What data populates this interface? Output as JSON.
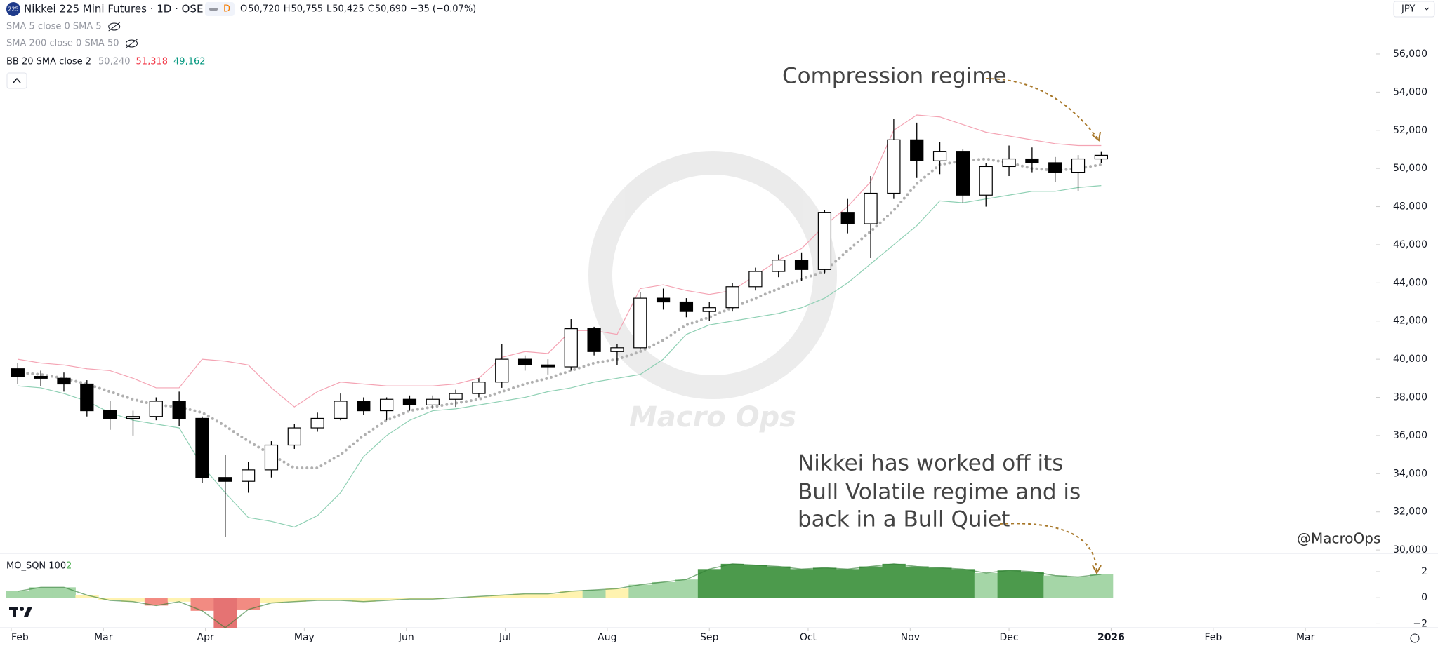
{
  "header": {
    "symbol": "Nikkei 225 Mini Futures · 1D · OSE",
    "badge": "D",
    "logo": "225",
    "ohlc": [
      {
        "key": "O",
        "value": "50,720"
      },
      {
        "key": "H",
        "value": "50,755"
      },
      {
        "key": "L",
        "value": "50,425"
      },
      {
        "key": "C",
        "value": "50,690"
      }
    ],
    "change": "−35 (−0.07%)",
    "indicators": [
      {
        "name": "SMA 5 close 0 SMA 5"
      },
      {
        "name": "SMA 200 close 0 SMA 50"
      },
      {
        "name": "BB 20 SMA close 2",
        "values": [
          "50,240",
          "51,318",
          "49,162"
        ]
      }
    ],
    "currency": "JPY"
  },
  "annotations": {
    "compression": "Compression regime",
    "note": [
      "Nikkei has worked off its",
      "Bull Volatile regime and is",
      "back in a Bull Quiet"
    ],
    "handle": "@MacroOps",
    "watermark": "Macro Ops"
  },
  "chart_data": [
    {
      "type": "candlestick",
      "x": [
        2,
        9,
        16,
        23,
        30,
        37,
        44,
        51,
        58,
        65,
        72,
        79,
        86,
        93,
        100,
        107,
        114,
        121,
        128,
        135,
        142,
        149,
        156,
        163,
        170,
        177,
        184,
        191,
        198,
        205,
        212,
        219,
        226,
        233,
        240,
        247,
        254,
        261,
        268,
        275,
        282,
        289,
        296,
        303,
        310,
        317,
        324,
        331
      ],
      "open": [
        39500,
        39100,
        39000,
        38700,
        37300,
        36900,
        37000,
        37800,
        36900,
        33800,
        33600,
        34200,
        35500,
        36400,
        36900,
        37800,
        37300,
        37900,
        37600,
        37900,
        38200,
        38800,
        40000,
        39700,
        39600,
        41600,
        40400,
        40600,
        43200,
        43000,
        42500,
        42700,
        43800,
        44600,
        45200,
        44700,
        47700,
        47100,
        48700,
        51500,
        50400,
        50900,
        48600,
        50100,
        50500,
        50300,
        49800,
        50500
      ],
      "high": [
        39800,
        39400,
        39300,
        38900,
        37800,
        37300,
        38000,
        38300,
        37000,
        35000,
        34600,
        35700,
        36600,
        37200,
        38200,
        38000,
        38000,
        38100,
        38100,
        38400,
        39000,
        40800,
        40200,
        40000,
        42100,
        41700,
        40800,
        43500,
        43700,
        43200,
        43000,
        44000,
        44800,
        45500,
        45600,
        47800,
        48400,
        49600,
        52600,
        52400,
        51400,
        51000,
        50300,
        51200,
        51100,
        50600,
        50700,
        50900
      ],
      "low": [
        38700,
        38600,
        38300,
        37000,
        36300,
        36000,
        36800,
        36500,
        33500,
        30700,
        33000,
        33800,
        35300,
        36200,
        36800,
        37100,
        36800,
        37300,
        37400,
        37500,
        38000,
        38500,
        39400,
        39200,
        39400,
        40200,
        39700,
        40500,
        42600,
        42200,
        42000,
        42500,
        43600,
        44300,
        44100,
        44500,
        46600,
        45300,
        48400,
        49500,
        49700,
        48200,
        48000,
        49600,
        49800,
        49300,
        48800,
        50300
      ],
      "close": [
        39100,
        39000,
        38700,
        37300,
        36900,
        37000,
        37800,
        36900,
        33800,
        33600,
        34200,
        35500,
        36400,
        36900,
        37800,
        37300,
        37900,
        37600,
        37900,
        38200,
        38800,
        40000,
        39700,
        39600,
        41600,
        40400,
        40600,
        43200,
        43000,
        42500,
        42700,
        43800,
        44600,
        45200,
        44700,
        47700,
        47100,
        48700,
        51500,
        50400,
        50900,
        48600,
        50100,
        50500,
        50300,
        49800,
        50500,
        50690
      ],
      "up_color": "#ffffff",
      "down_color": "#000000",
      "series": [
        {
          "color": "#f4a3b3",
          "style": "solid",
          "values": [
            40000,
            39800,
            39700,
            39500,
            39400,
            39000,
            38500,
            38500,
            40000,
            39900,
            39700,
            38500,
            37500,
            38300,
            38800,
            38700,
            38600,
            38600,
            38600,
            38700,
            39000,
            40100,
            40400,
            40300,
            41500,
            41500,
            41300,
            43700,
            43900,
            43600,
            43400,
            43600,
            44400,
            45200,
            45800,
            47000,
            48000,
            49300,
            52000,
            52800,
            52700,
            52300,
            51900,
            51700,
            51500,
            51300,
            51200,
            51200
          ]
        },
        {
          "color": "#b0b0b0",
          "style": "dotted",
          "values": [
            39300,
            39200,
            39000,
            38700,
            38300,
            37900,
            37600,
            37500,
            37200,
            36500,
            35700,
            35000,
            34300,
            34300,
            35000,
            36000,
            36800,
            37300,
            37500,
            37700,
            37900,
            38300,
            38700,
            39000,
            39400,
            39800,
            40000,
            40400,
            41000,
            41800,
            42200,
            42700,
            43200,
            43700,
            44200,
            44600,
            45700,
            46700,
            47800,
            49200,
            50200,
            50400,
            50500,
            50300,
            50000,
            49900,
            50000,
            50200
          ]
        },
        {
          "color": "#8fd0b4",
          "style": "solid",
          "values": [
            38600,
            38500,
            38200,
            37800,
            37200,
            36800,
            36600,
            36400,
            34400,
            33000,
            31700,
            31500,
            31200,
            31800,
            33000,
            34900,
            36000,
            36800,
            37300,
            37400,
            37600,
            37800,
            38000,
            38300,
            38500,
            38800,
            39000,
            39200,
            40000,
            41300,
            41800,
            42000,
            42200,
            42400,
            42700,
            43200,
            44000,
            45000,
            46000,
            47000,
            48300,
            48200,
            48400,
            48600,
            48800,
            48800,
            49000,
            49100
          ]
        }
      ],
      "xlim": [
        -3.4,
        414.5
      ],
      "xticks": [
        {
          "value": 0,
          "label": "Feb"
        },
        {
          "value": 28,
          "label": "Mar"
        },
        {
          "value": 59,
          "label": "Apr"
        },
        {
          "value": 89,
          "label": "May"
        },
        {
          "value": 120,
          "label": "Jun"
        },
        {
          "value": 150,
          "label": "Jul"
        },
        {
          "value": 181,
          "label": "Aug"
        },
        {
          "value": 212,
          "label": "Sep"
        },
        {
          "value": 242,
          "label": "Oct"
        },
        {
          "value": 273,
          "label": "Nov"
        },
        {
          "value": 303,
          "label": "Dec"
        },
        {
          "value": 334,
          "label": "2026"
        },
        {
          "value": 365,
          "label": "Feb"
        },
        {
          "value": 393,
          "label": "Mar"
        }
      ],
      "ylim": [
        29820,
        58830
      ],
      "yticks": [
        {
          "value": 30000,
          "label": "30,000"
        },
        {
          "value": 32000,
          "label": "32,000"
        },
        {
          "value": 34000,
          "label": "34,000"
        },
        {
          "value": 36000,
          "label": "36,000"
        },
        {
          "value": 38000,
          "label": "38,000"
        },
        {
          "value": 40000,
          "label": "40,000"
        },
        {
          "value": 42000,
          "label": "42,000"
        },
        {
          "value": 44000,
          "label": "44,000"
        },
        {
          "value": 46000,
          "label": "46,000"
        },
        {
          "value": 48000,
          "label": "48,000"
        },
        {
          "value": 50000,
          "label": "50,000"
        },
        {
          "value": 52000,
          "label": "52,000"
        },
        {
          "value": 54000,
          "label": "54,000"
        },
        {
          "value": 56000,
          "label": "56,000"
        }
      ]
    },
    {
      "type": "area",
      "title": "MO_SQN 100",
      "legend_value": "2",
      "x": [
        2,
        9,
        16,
        23,
        30,
        37,
        44,
        51,
        58,
        65,
        72,
        79,
        86,
        93,
        100,
        107,
        114,
        121,
        128,
        135,
        142,
        149,
        156,
        163,
        170,
        177,
        184,
        191,
        198,
        205,
        212,
        219,
        226,
        233,
        240,
        247,
        254,
        261,
        268,
        275,
        282,
        289,
        296,
        303,
        310,
        317,
        324,
        331
      ],
      "series": [
        {
          "color": "#2e7d32",
          "values": [
            0.5,
            0.8,
            0.8,
            0.2,
            -0.2,
            -0.3,
            -0.6,
            -0.3,
            -1.0,
            -2.3,
            -0.9,
            -0.4,
            -0.3,
            -0.2,
            -0.2,
            -0.3,
            -0.2,
            -0.1,
            -0.1,
            0.0,
            0.1,
            0.2,
            0.3,
            0.3,
            0.5,
            0.6,
            0.7,
            1.0,
            1.2,
            1.4,
            2.2,
            2.6,
            2.5,
            2.4,
            2.2,
            2.3,
            2.2,
            2.4,
            2.6,
            2.4,
            2.3,
            2.2,
            1.9,
            2.1,
            2.0,
            1.7,
            1.6,
            1.8
          ],
          "point_colors": [
            "#a5d6a7",
            "#a5d6a7",
            "#a5d6a7",
            "#fff3b0",
            "#fff3b0",
            "#fff3b0",
            "#f28b82",
            "#fff3b0",
            "#f28b82",
            "#e57373",
            "#f28b82",
            "#fff3b0",
            "#fff3b0",
            "#fff3b0",
            "#fff3b0",
            "#fff3b0",
            "#fff3b0",
            "#fff3b0",
            "#fff3b0",
            "#fff3b0",
            "#fff3b0",
            "#fff3b0",
            "#fff3b0",
            "#fff3b0",
            "#fff3b0",
            "#a5d6a7",
            "#fff3b0",
            "#a5d6a7",
            "#a5d6a7",
            "#a5d6a7",
            "#4c9a4c",
            "#4c9a4c",
            "#4c9a4c",
            "#4c9a4c",
            "#4c9a4c",
            "#4c9a4c",
            "#4c9a4c",
            "#4c9a4c",
            "#4c9a4c",
            "#4c9a4c",
            "#4c9a4c",
            "#4c9a4c",
            "#a5d6a7",
            "#4c9a4c",
            "#4c9a4c",
            "#a5d6a7",
            "#a5d6a7",
            "#a5d6a7"
          ]
        }
      ],
      "xlim": [
        -3.4,
        414.5
      ],
      "ylim": [
        -2.3,
        3.4
      ],
      "yticks": [
        2,
        0,
        {
          "value": -2,
          "label": "−2"
        }
      ]
    }
  ]
}
